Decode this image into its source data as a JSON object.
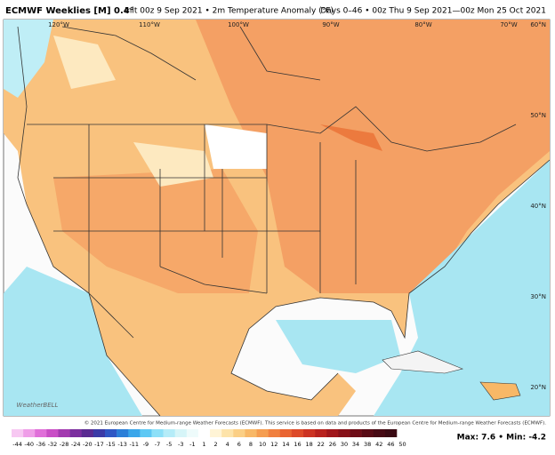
{
  "header": {
    "title": "ECMWF Weeklies [M] 0.4°",
    "subtitle": "Init 00z 9 Sep 2021 • 2m Temperature Anomaly (°F)",
    "period": "Days 0–46 • 00z Thu 9 Sep 2021—00z Mon 25 Oct 2021"
  },
  "map": {
    "lon_labels": [
      "120°W",
      "110°W",
      "100°W",
      "90°W",
      "80°W",
      "70°W"
    ],
    "lat_labels": [
      "60°N",
      "50°N",
      "40°N",
      "30°N",
      "20°N"
    ],
    "logo": "WeatherBELL",
    "credit": "© 2021 European Centre for Medium-range Weather Forecasts (ECMWF). This service is based on data and products of the European Centre for Medium-range Weather Forecasts (ECMWF)."
  },
  "colorbar": {
    "ticks": [
      -44,
      -40,
      -36,
      -32,
      -28,
      -24,
      -20,
      -17,
      -15,
      -13,
      -11,
      -9,
      -7,
      -5,
      -3,
      -1,
      1,
      2,
      4,
      6,
      8,
      10,
      12,
      14,
      16,
      18,
      22,
      26,
      30,
      34,
      38,
      42,
      46,
      50
    ],
    "colors": [
      "#f7c8f2",
      "#ef9ee8",
      "#e06fd9",
      "#c94ec6",
      "#a33ab0",
      "#7b2e9e",
      "#5a2a91",
      "#3b3aa6",
      "#2f57c4",
      "#2b7fd8",
      "#3aa6ea",
      "#5ec8f4",
      "#8de0f8",
      "#b5ecf8",
      "#d6f5f8",
      "#eefbfb",
      "#ffffff",
      "#fff4d6",
      "#fde3a9",
      "#fbcf85",
      "#f8b867",
      "#f59d50",
      "#f0803f",
      "#e96432",
      "#dd4a29",
      "#cc3323",
      "#b8221e",
      "#a0161b",
      "#871119",
      "#6e0d17",
      "#580b15",
      "#470a14",
      "#3a0a13"
    ]
  },
  "stats": "Max: 7.6 • Min: -4.2"
}
